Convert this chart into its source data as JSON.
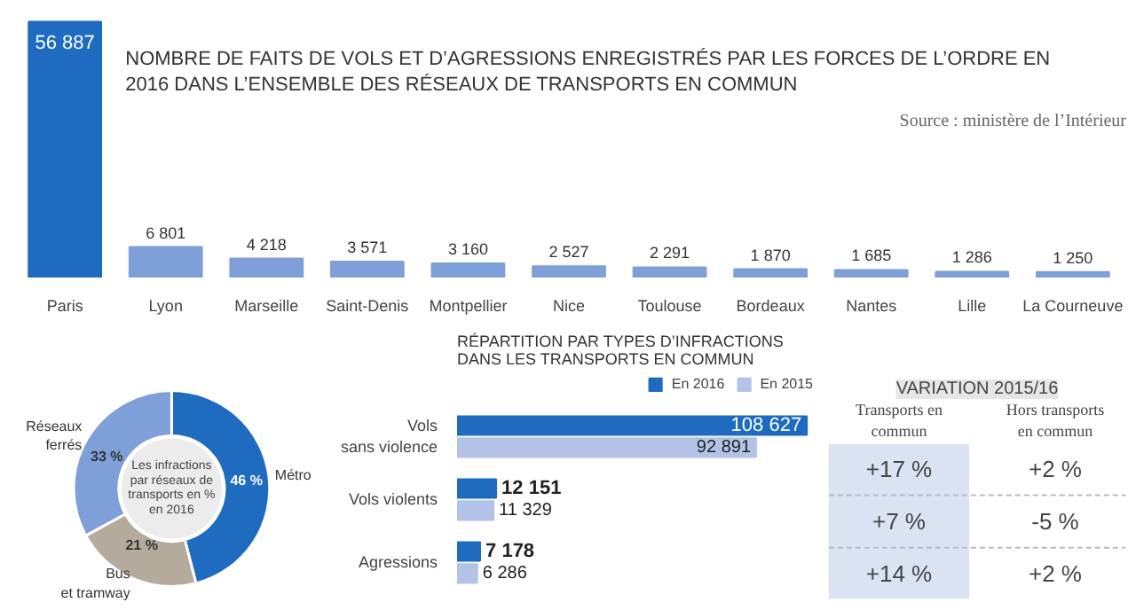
{
  "chart_data": [
    {
      "type": "bar",
      "title": "NOMBRE DE FAITS DE VOLS ET D’AGRESSIONS ENREGISTRÉS PAR LES FORCES DE L’ORDRE EN 2016 DANS L’ENSEMBLE DES RÉSEAUX DE TRANSPORTS EN COMMUN",
      "annotations": [
        "Source : ministère de l’Intérieur"
      ],
      "categories": [
        "Paris",
        "Lyon",
        "Marseille",
        "Saint-Denis",
        "Montpellier",
        "Nice",
        "Toulouse",
        "Bordeaux",
        "Nantes",
        "Lille",
        "La Courneuve"
      ],
      "values": [
        56887,
        6801,
        4218,
        3571,
        3160,
        2527,
        2291,
        1870,
        1685,
        1286,
        1250
      ],
      "value_labels": [
        "56 887",
        "6 801",
        "4 218",
        "3 571",
        "3 160",
        "2 527",
        "2 291",
        "1 870",
        "1 685",
        "1 286",
        "1 250"
      ],
      "colors": [
        "#1f6bbf",
        "#7f9fd8",
        "#7f9fd8",
        "#7f9fd8",
        "#7f9fd8",
        "#7f9fd8",
        "#7f9fd8",
        "#7f9fd8",
        "#7f9fd8",
        "#7f9fd8",
        "#7f9fd8"
      ],
      "tick_labels": "x"
    },
    {
      "type": "donut",
      "annotations": [
        "Les infractions par réseaux de transports en % en 2016"
      ],
      "categories": [
        "Métro",
        "Bus et tramway",
        "Réseaux ferrés"
      ],
      "values": [
        46,
        21,
        33
      ],
      "value_labels": [
        "46 %",
        "21 %",
        "33 %"
      ],
      "colors": [
        "#1f6bbf",
        "#b5ab9c",
        "#7f9fd8"
      ]
    },
    {
      "type": "bar",
      "orientation": "horizontal",
      "title": "RÉPARTITION PAR TYPES D’INFRACTIONS DANS LES TRANSPORTS EN COMMUN",
      "categories": [
        "Vols sans violence",
        "Vols violents",
        "Agressions"
      ],
      "series": [
        {
          "name": "En 2016",
          "color": "#1f6bbf",
          "values": [
            108627,
            12151,
            7178
          ],
          "value_labels": [
            "108 627",
            "12 151",
            "7 178"
          ]
        },
        {
          "name": "En 2015",
          "color": "#b3c3e8",
          "values": [
            92891,
            11329,
            6286
          ],
          "value_labels": [
            "92 891",
            "11 329",
            "6 286"
          ]
        }
      ],
      "tick_labels": "y",
      "legend": "top right"
    },
    {
      "type": "other",
      "title": "VARIATION 2015/16",
      "categories": [
        "Transports en commun",
        "Hors transports en commun"
      ],
      "colors": [
        "#dbe3f3",
        "#ffffff"
      ],
      "cell_labels": [
        [
          "+17 %",
          "+2 %"
        ],
        [
          "+7 %",
          "-5 %"
        ],
        [
          "+14 %",
          "+2 %"
        ]
      ]
    }
  ]
}
